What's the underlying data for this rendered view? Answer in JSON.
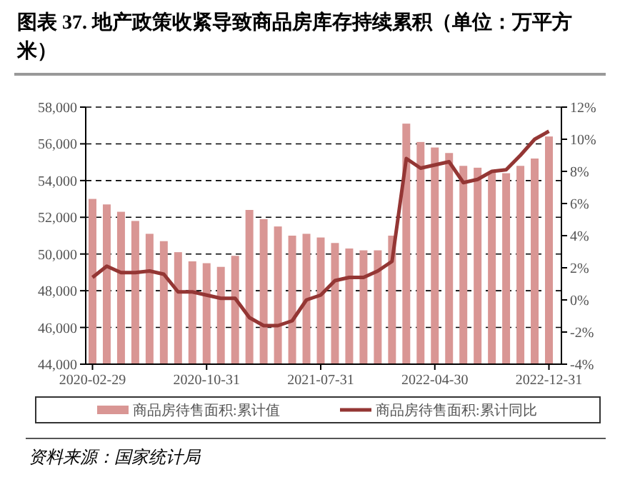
{
  "chart_data": {
    "type": "bar",
    "title": "图表 37. 地产政策收紧导致商品房库存持续累积（单位：万平方米）",
    "categories": [
      "2020-02-29",
      null,
      null,
      null,
      null,
      null,
      null,
      null,
      "2020-10-31",
      null,
      null,
      null,
      null,
      null,
      null,
      null,
      "2021-07-31",
      null,
      null,
      null,
      null,
      null,
      null,
      null,
      "2022-04-30",
      null,
      null,
      null,
      null,
      null,
      null,
      null,
      "2022-12-31"
    ],
    "series": [
      {
        "name": "商品房待售面积:累计值",
        "color": "#d99694",
        "values": [
          53000,
          52700,
          52300,
          51800,
          51100,
          50700,
          50100,
          49600,
          49500,
          49300,
          49900,
          52400,
          51900,
          51500,
          51000,
          51100,
          50900,
          50600,
          50300,
          50200,
          50200,
          51000,
          57100,
          56100,
          55800,
          55500,
          54800,
          54700,
          54500,
          54400,
          54800,
          55200,
          56400
        ]
      },
      {
        "name": "商品房待售面积:累计同比",
        "type": "line",
        "axis": "y2",
        "color": "#943634",
        "values": [
          1.4,
          2.1,
          1.7,
          1.7,
          1.8,
          1.6,
          0.5,
          0.5,
          0.3,
          0.1,
          0.1,
          -1.1,
          -1.6,
          -1.6,
          -1.3,
          0.0,
          0.3,
          1.2,
          1.4,
          1.4,
          1.8,
          2.4,
          8.8,
          8.2,
          8.4,
          8.6,
          7.3,
          7.5,
          8.0,
          8.1,
          9.0,
          10.0,
          10.5
        ]
      }
    ],
    "ylim": [
      44000,
      58000
    ],
    "yticks": [
      {
        "value": 44000,
        "label": "44,000"
      },
      {
        "value": 46000,
        "label": "46,000"
      },
      {
        "value": 48000,
        "label": "48,000"
      },
      {
        "value": 50000,
        "label": "50,000"
      },
      {
        "value": 52000,
        "label": "52,000"
      },
      {
        "value": 54000,
        "label": "54,000"
      },
      {
        "value": 56000,
        "label": "56,000"
      },
      {
        "value": 58000,
        "label": "58,000"
      }
    ],
    "y2lim": [
      -4,
      12
    ],
    "y2ticks": [
      {
        "value": -4,
        "label": "-4%"
      },
      {
        "value": -2,
        "label": "-2%"
      },
      {
        "value": 0,
        "label": "0%"
      },
      {
        "value": 2,
        "label": "2%"
      },
      {
        "value": 4,
        "label": "4%"
      },
      {
        "value": 6,
        "label": "6%"
      },
      {
        "value": 8,
        "label": "8%"
      },
      {
        "value": 10,
        "label": "10%"
      },
      {
        "value": 12,
        "label": "12%"
      }
    ],
    "grid": "y",
    "legend": "bottom",
    "annotations": [
      "资料来源：国家统计局"
    ]
  }
}
